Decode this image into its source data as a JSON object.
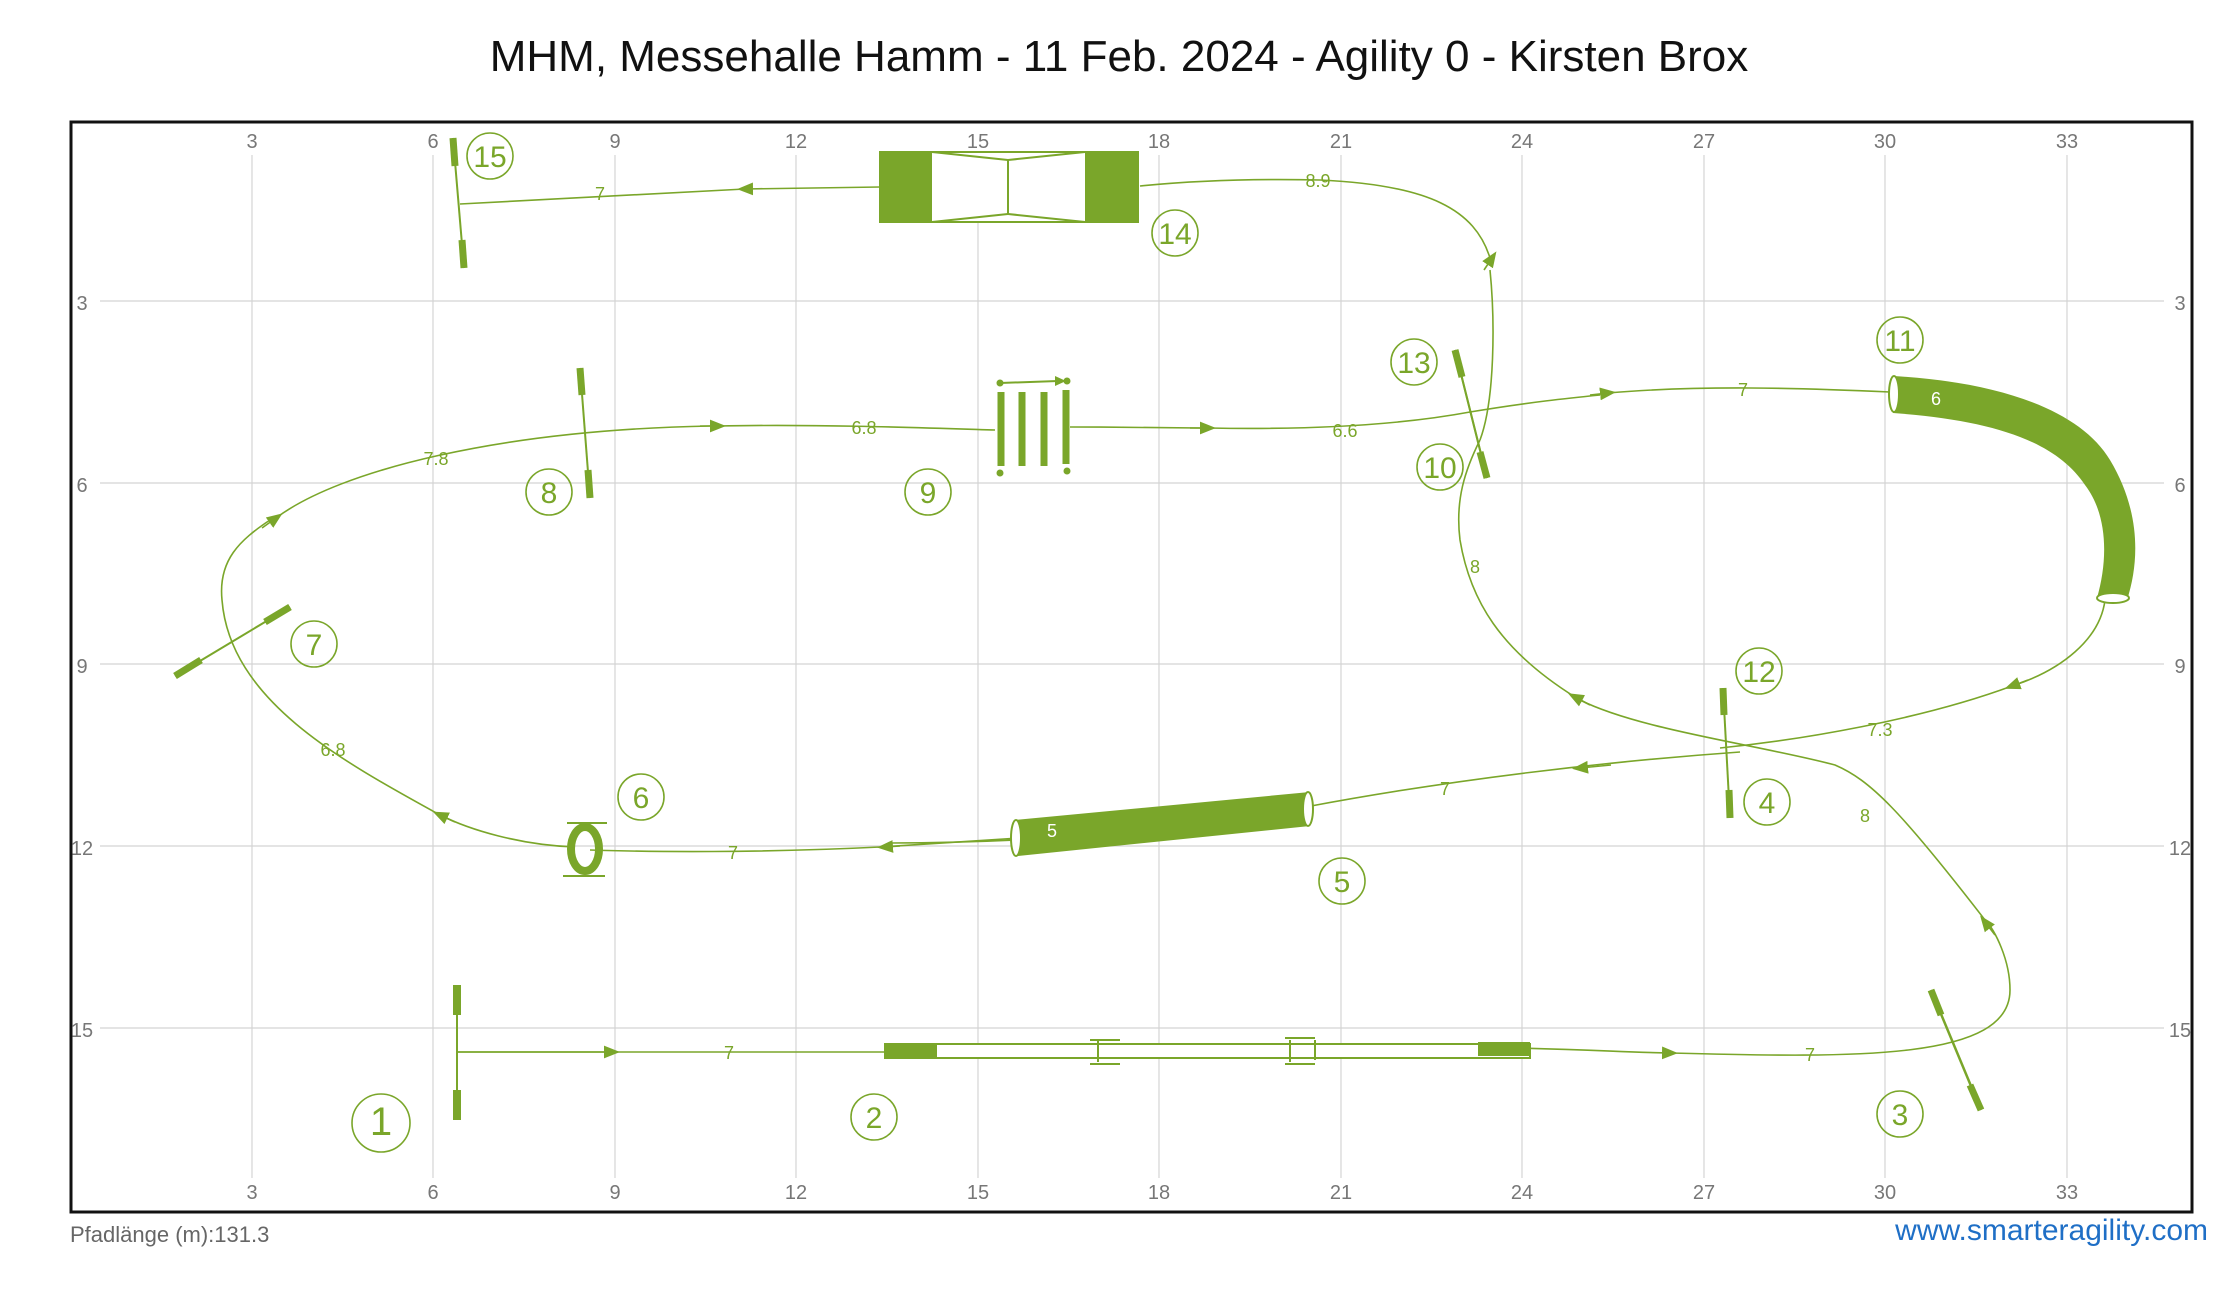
{
  "header": {
    "title": "MHM, Messehalle Hamm - 11 Feb. 2024 - Agility 0 - Kirsten Brox"
  },
  "footer": {
    "path_length": "Pfadlänge (m):131.3",
    "website": "www.smarteragility.com"
  },
  "colors": {
    "obstacle": "#7aa62a",
    "grid": "#d4d4d4",
    "frame": "#111111",
    "link": "#1f6fc6"
  },
  "axes": {
    "x_ticks": [
      "3",
      "6",
      "9",
      "12",
      "15",
      "18",
      "21",
      "24",
      "27",
      "30",
      "33"
    ],
    "y_ticks": [
      "3",
      "6",
      "9",
      "12",
      "15"
    ]
  },
  "obstacles": [
    {
      "number": "1",
      "type": "start-jump"
    },
    {
      "number": "2",
      "type": "dog-walk"
    },
    {
      "number": "3",
      "type": "jump"
    },
    {
      "number": "4",
      "type": "jump"
    },
    {
      "number": "5",
      "type": "tunnel",
      "label": "5"
    },
    {
      "number": "6",
      "type": "tire"
    },
    {
      "number": "7",
      "type": "jump"
    },
    {
      "number": "8",
      "type": "jump"
    },
    {
      "number": "9",
      "type": "weave-poles"
    },
    {
      "number": "10",
      "type": "jump"
    },
    {
      "number": "11",
      "type": "curved-tunnel",
      "label": "6"
    },
    {
      "number": "12",
      "type": "jump"
    },
    {
      "number": "13",
      "type": "jump"
    },
    {
      "number": "14",
      "type": "a-frame"
    },
    {
      "number": "15",
      "type": "finish-jump"
    }
  ],
  "segments": [
    "7",
    "7",
    "8",
    "7",
    "7",
    "6.8",
    "7.8",
    "6.8",
    "6.6",
    "7",
    "7.3",
    "8",
    "8.9",
    "7"
  ]
}
